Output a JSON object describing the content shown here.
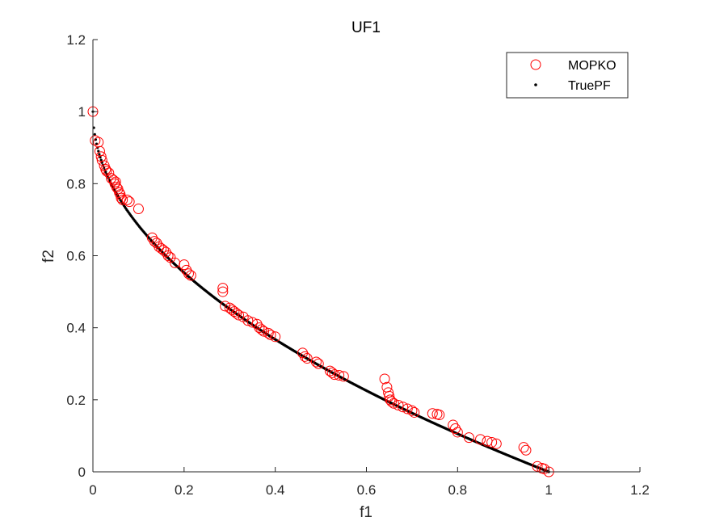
{
  "chart_data": {
    "type": "scatter",
    "title": "UF1",
    "xlabel": "f1",
    "ylabel": "f2",
    "xlim": [
      0,
      1.2
    ],
    "ylim": [
      0,
      1.2
    ],
    "xticks": [
      "0",
      "0.2",
      "0.4",
      "0.6",
      "0.8",
      "1",
      "1.2"
    ],
    "yticks": [
      "0",
      "0.2",
      "0.4",
      "0.6",
      "0.8",
      "1",
      "1.2"
    ],
    "grid": false,
    "legend_position": "top-right",
    "colors": {
      "mopko": "#ff0000",
      "truepf": "#000000",
      "axis": "#262626"
    },
    "series": [
      {
        "name": "MOPKO",
        "marker": "circle-open",
        "points": [
          [
            0.0,
            1.0
          ],
          [
            0.005,
            0.92
          ],
          [
            0.012,
            0.915
          ],
          [
            0.015,
            0.89
          ],
          [
            0.018,
            0.875
          ],
          [
            0.02,
            0.865
          ],
          [
            0.025,
            0.85
          ],
          [
            0.028,
            0.84
          ],
          [
            0.03,
            0.835
          ],
          [
            0.035,
            0.83
          ],
          [
            0.04,
            0.815
          ],
          [
            0.045,
            0.81
          ],
          [
            0.048,
            0.8
          ],
          [
            0.05,
            0.805
          ],
          [
            0.052,
            0.79
          ],
          [
            0.055,
            0.785
          ],
          [
            0.058,
            0.775
          ],
          [
            0.06,
            0.77
          ],
          [
            0.062,
            0.76
          ],
          [
            0.065,
            0.755
          ],
          [
            0.075,
            0.755
          ],
          [
            0.08,
            0.75
          ],
          [
            0.1,
            0.73
          ],
          [
            0.13,
            0.65
          ],
          [
            0.135,
            0.64
          ],
          [
            0.14,
            0.635
          ],
          [
            0.145,
            0.625
          ],
          [
            0.15,
            0.62
          ],
          [
            0.155,
            0.615
          ],
          [
            0.16,
            0.61
          ],
          [
            0.165,
            0.6
          ],
          [
            0.17,
            0.595
          ],
          [
            0.18,
            0.58
          ],
          [
            0.2,
            0.575
          ],
          [
            0.205,
            0.56
          ],
          [
            0.21,
            0.55
          ],
          [
            0.215,
            0.545
          ],
          [
            0.285,
            0.51
          ],
          [
            0.285,
            0.5
          ],
          [
            0.29,
            0.46
          ],
          [
            0.3,
            0.455
          ],
          [
            0.305,
            0.45
          ],
          [
            0.31,
            0.445
          ],
          [
            0.315,
            0.44
          ],
          [
            0.32,
            0.435
          ],
          [
            0.33,
            0.43
          ],
          [
            0.34,
            0.42
          ],
          [
            0.35,
            0.415
          ],
          [
            0.36,
            0.41
          ],
          [
            0.365,
            0.4
          ],
          [
            0.37,
            0.395
          ],
          [
            0.375,
            0.39
          ],
          [
            0.385,
            0.385
          ],
          [
            0.39,
            0.38
          ],
          [
            0.4,
            0.375
          ],
          [
            0.46,
            0.33
          ],
          [
            0.465,
            0.32
          ],
          [
            0.47,
            0.315
          ],
          [
            0.49,
            0.305
          ],
          [
            0.495,
            0.3
          ],
          [
            0.52,
            0.28
          ],
          [
            0.525,
            0.275
          ],
          [
            0.53,
            0.27
          ],
          [
            0.54,
            0.268
          ],
          [
            0.55,
            0.265
          ],
          [
            0.64,
            0.258
          ],
          [
            0.645,
            0.235
          ],
          [
            0.648,
            0.22
          ],
          [
            0.65,
            0.21
          ],
          [
            0.652,
            0.2
          ],
          [
            0.655,
            0.195
          ],
          [
            0.66,
            0.19
          ],
          [
            0.67,
            0.185
          ],
          [
            0.68,
            0.18
          ],
          [
            0.69,
            0.175
          ],
          [
            0.7,
            0.17
          ],
          [
            0.705,
            0.165
          ],
          [
            0.745,
            0.162
          ],
          [
            0.755,
            0.16
          ],
          [
            0.76,
            0.158
          ],
          [
            0.79,
            0.13
          ],
          [
            0.795,
            0.12
          ],
          [
            0.8,
            0.11
          ],
          [
            0.825,
            0.095
          ],
          [
            0.85,
            0.09
          ],
          [
            0.865,
            0.085
          ],
          [
            0.875,
            0.082
          ],
          [
            0.885,
            0.078
          ],
          [
            0.945,
            0.068
          ],
          [
            0.95,
            0.06
          ],
          [
            0.975,
            0.015
          ],
          [
            0.985,
            0.01
          ],
          [
            0.99,
            0.008
          ],
          [
            1.0,
            0.0
          ]
        ]
      },
      {
        "name": "TruePF",
        "marker": "point",
        "curve": "f2 = 1 - sqrt(f1)",
        "n_points": 500
      }
    ]
  }
}
